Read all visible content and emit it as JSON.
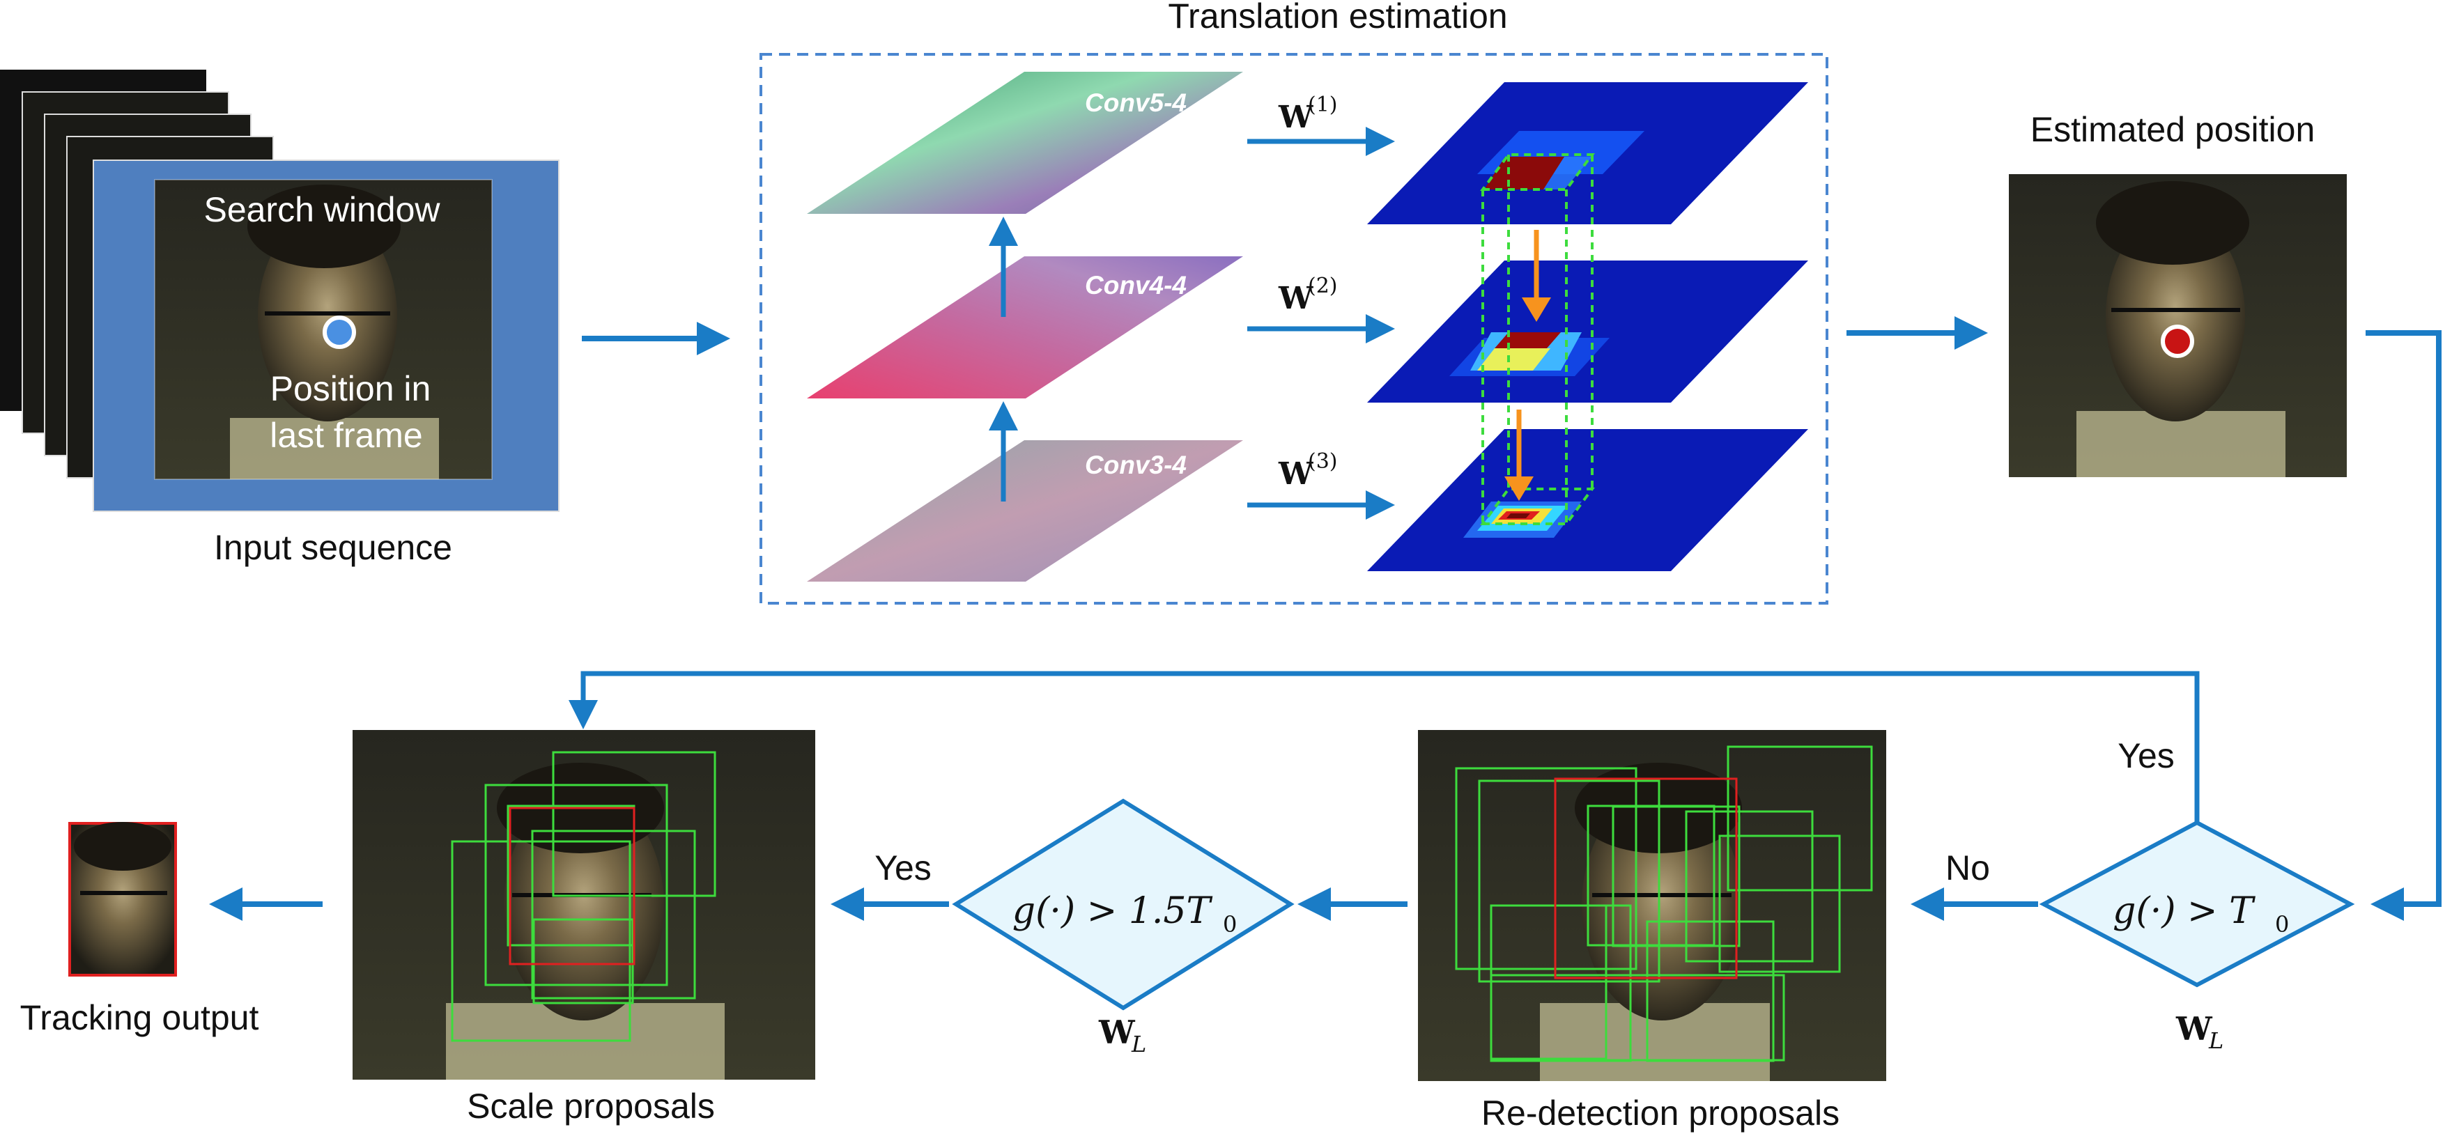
{
  "input": {
    "caption": "Input sequence",
    "search_window": "Search window",
    "position_line1": "Position in",
    "position_line2": "last frame"
  },
  "translation": {
    "title": "Translation estimation",
    "layers": [
      {
        "name": "Conv5-4",
        "weight": "W",
        "sup": "(1)"
      },
      {
        "name": "Conv4-4",
        "weight": "W",
        "sup": "(2)"
      },
      {
        "name": "Conv3-4",
        "weight": "W",
        "sup": "(3)"
      }
    ]
  },
  "estimated": {
    "title": "Estimated position"
  },
  "decision1": {
    "lhs": "g(·) > T",
    "sub": "0",
    "weight": "W",
    "weight_sub": "L",
    "yes": "Yes",
    "no": "No"
  },
  "decision2": {
    "lhs": "g(·) > 1.5T",
    "sub": "0",
    "weight": "W",
    "weight_sub": "L",
    "yes": "Yes"
  },
  "redetection": {
    "caption": "Re-detection proposals"
  },
  "scale": {
    "caption": "Scale proposals"
  },
  "output": {
    "caption": "Tracking output"
  },
  "colors": {
    "flow_arrow": "#1a7cc6",
    "inner_arrow": "#f7931e",
    "dashed_box": "#4a86d0",
    "proposal_green": "#3ddc3d",
    "proposal_red": "#e02020",
    "diamond_fill": "#e6f6fd"
  }
}
